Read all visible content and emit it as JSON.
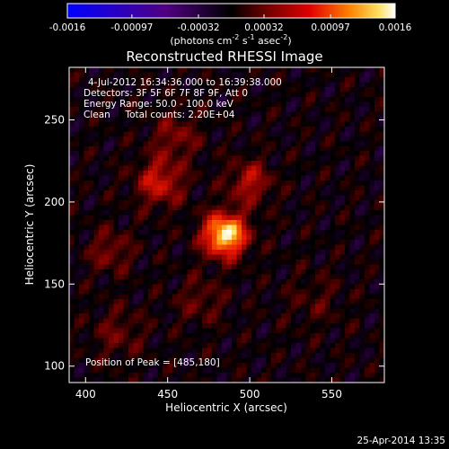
{
  "colorbar": {
    "ticks": [
      "-0.0016",
      "-0.00097",
      "-0.00032",
      "0.00032",
      "0.00097",
      "0.0016"
    ],
    "tick_values": [
      -0.0016,
      -0.00097,
      -0.00032,
      0.00032,
      0.00097,
      0.0016
    ],
    "unit_label": {
      "prefix": "(photons cm",
      "exp1": "-2",
      "mid1": " s",
      "exp2": "-1",
      "mid2": " asec",
      "exp3": "-2",
      "suffix": ")"
    },
    "range": [
      -0.0016,
      0.0016
    ]
  },
  "chart_data": {
    "type": "heatmap",
    "title": "Reconstructed RHESSI Image",
    "xlabel": "Heliocentric X (arcsec)",
    "ylabel": "Heliocentric Y (arcsec)",
    "xlim": [
      390,
      582
    ],
    "ylim": [
      90,
      282
    ],
    "x_ticks": [
      400,
      450,
      500,
      550
    ],
    "y_ticks": [
      100,
      150,
      200,
      250
    ],
    "x_tick_labels": [
      "400",
      "450",
      "500",
      "550"
    ],
    "y_tick_labels": [
      "100",
      "150",
      "200",
      "250"
    ],
    "colormap": "rhessi-blue-red-yellow",
    "sources": [
      {
        "x": 485,
        "y": 180,
        "amplitude": 0.0016,
        "sigma": 9
      },
      {
        "x": 445,
        "y": 212,
        "amplitude": 0.0007,
        "sigma": 10
      },
      {
        "x": 500,
        "y": 212,
        "amplitude": 0.0006,
        "sigma": 9
      },
      {
        "x": 415,
        "y": 170,
        "amplitude": 0.0004,
        "sigma": 9
      },
      {
        "x": 455,
        "y": 240,
        "amplitude": 0.0004,
        "sigma": 10
      },
      {
        "x": 470,
        "y": 140,
        "amplitude": 0.0003,
        "sigma": 10
      },
      {
        "x": 420,
        "y": 120,
        "amplitude": 0.0003,
        "sigma": 11
      },
      {
        "x": 540,
        "y": 140,
        "amplitude": 0.0002,
        "sigma": 12
      }
    ],
    "annotations": {
      "time": "4-Jul-2012 16:34:36.000 to 16:39:38.000",
      "detectors": "Detectors: 3F 5F 6F 7F 8F 9F, Att 0",
      "energy": "Energy Range: 50.0 - 100.0 keV",
      "clean": "Clean     Total counts: 2.20E+04",
      "peak": "Position of Peak = [485,180]"
    },
    "peak": [
      485,
      180
    ]
  },
  "footer": {
    "timestamp": "25-Apr-2014 13:35"
  }
}
